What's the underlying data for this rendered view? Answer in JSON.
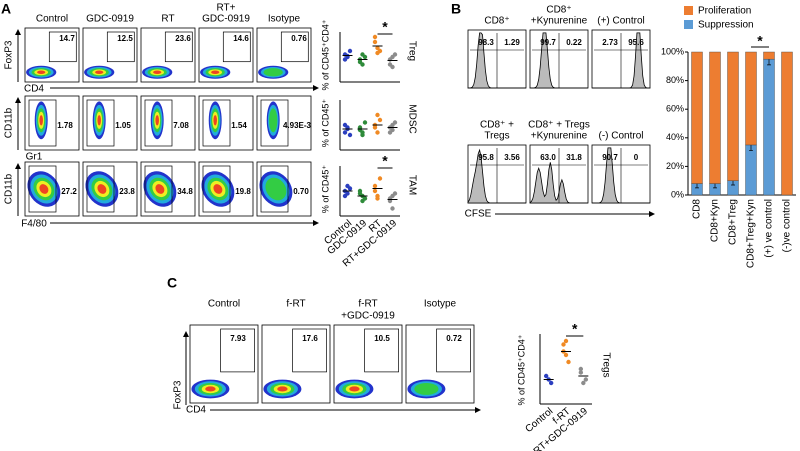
{
  "panel_a": {
    "label": "A",
    "columns": [
      [
        "Control"
      ],
      [
        "GDC-0919"
      ],
      [
        "RT"
      ],
      [
        "RT+",
        "GDC-0919"
      ],
      [
        "Isotype"
      ]
    ],
    "rows": [
      {
        "y_label": "FoxP3",
        "x_label": "CD4",
        "gates": [
          "14.7",
          "12.5",
          "23.6",
          "14.6",
          "0.76"
        ],
        "dot_plot": {
          "y_label": "% of CD45⁺CD4⁺",
          "tag": "Treg",
          "significance": "*",
          "values": [
            [
              0.55,
              0.5,
              0.62,
              0.45,
              0.52
            ],
            [
              0.45,
              0.35,
              0.5,
              0.4,
              0.55
            ],
            [
              0.8,
              0.68,
              0.62,
              0.9,
              0.58
            ],
            [
              0.45,
              0.3,
              0.55,
              0.35,
              0.5
            ]
          ],
          "means": [
            0.53,
            0.45,
            0.72,
            0.43
          ]
        }
      },
      {
        "y_label": "CD11b",
        "x_label": "Gr1",
        "gates": [
          "1.78",
          "1.05",
          "7.08",
          "1.54",
          "4.93E-3"
        ],
        "dot_plot": {
          "y_label": "% of CD45⁺",
          "tag": "MDSC",
          "values": [
            [
              0.35,
              0.45,
              0.3,
              0.5,
              0.42
            ],
            [
              0.4,
              0.3,
              0.55,
              0.45,
              0.35
            ],
            [
              0.5,
              0.35,
              0.6,
              0.45,
              0.7
            ],
            [
              0.45,
              0.4,
              0.55,
              0.35,
              0.5
            ]
          ],
          "means": [
            0.42,
            0.42,
            0.5,
            0.45
          ]
        }
      },
      {
        "y_label": "CD11b",
        "x_label": "F4/80",
        "gates": [
          "27.2",
          "23.8",
          "34.8",
          "19.8",
          "0.70"
        ],
        "dot_plot": {
          "y_label": "% of CD45⁺",
          "tag": "TAM",
          "significance": "*",
          "values": [
            [
              0.5,
              0.45,
              0.55,
              0.4,
              0.6
            ],
            [
              0.45,
              0.3,
              0.35,
              0.5,
              0.4
            ],
            [
              0.6,
              0.35,
              0.75,
              0.5,
              0.4
            ],
            [
              0.35,
              0.15,
              0.45,
              0.3,
              0.4
            ]
          ],
          "means": [
            0.5,
            0.4,
            0.55,
            0.33
          ]
        }
      }
    ],
    "categories": [
      "Control",
      "GDC-0919",
      "RT",
      "RT+GDC-0919"
    ],
    "colors": [
      "#2b3fbf",
      "#2e8b3a",
      "#f08a24",
      "#8c8c8c"
    ],
    "ylim": [
      0,
      1
    ]
  },
  "panel_b": {
    "label": "B",
    "plots": [
      {
        "title": [
          "CD8⁺"
        ],
        "left": "98.3",
        "right": "1.29"
      },
      {
        "title": [
          "CD8⁺",
          "+Kynurenine"
        ],
        "left": "99.7",
        "right": "0.22"
      },
      {
        "title": [
          "(+) Control"
        ],
        "left": "2.73",
        "right": "95.6"
      },
      {
        "title": [
          "CD8⁺ +",
          "Tregs"
        ],
        "left": "95.8",
        "right": "3.56"
      },
      {
        "title": [
          "CD8⁺ + Tregs",
          "+Kynurenine"
        ],
        "left": "63.0",
        "right": "31.8"
      },
      {
        "title": [
          "(-) Control"
        ],
        "left": "90.7",
        "right": "0"
      }
    ],
    "x_label": "CFSE",
    "chart_data": {
      "type": "bar",
      "stacked": true,
      "categories": [
        "CD8",
        "CD8+Kyn",
        "CD8+Treg",
        "CD8+Treg+Kyn",
        "(+) ve control",
        "(-)ve control"
      ],
      "series": [
        {
          "name": "Proliferation",
          "color": "#ed7d31",
          "values": [
            92,
            92,
            90,
            65,
            5,
            100
          ]
        },
        {
          "name": "Suppression",
          "color": "#5b9bd5",
          "values": [
            8,
            8,
            10,
            35,
            95,
            0
          ],
          "errors": [
            3,
            3,
            3,
            4,
            4,
            0
          ]
        }
      ],
      "ylim": [
        0,
        100
      ],
      "yticks": [
        {
          "value": 0,
          "label": "0%"
        },
        {
          "value": 20,
          "label": "20%"
        },
        {
          "value": 40,
          "label": "40%"
        },
        {
          "value": 60,
          "label": "60%"
        },
        {
          "value": 80,
          "label": "80%"
        },
        {
          "value": 100,
          "label": "100%"
        }
      ],
      "significance": "*"
    }
  },
  "panel_c": {
    "label": "C",
    "columns": [
      [
        "Control"
      ],
      [
        "f-RT"
      ],
      [
        "f-RT",
        "+GDC-0919"
      ],
      [
        "Isotype"
      ]
    ],
    "gates": [
      "7.93",
      "17.6",
      "10.5",
      "0.72"
    ],
    "y_label": "FoxP3",
    "x_label": "CD4",
    "dot_plot": {
      "y_label": "% of CD45⁺CD4⁺",
      "tag": "Tregs",
      "significance": "*",
      "categories": [
        "Control",
        "f-RT",
        "f-RT+GDC-0919"
      ],
      "colors": [
        "#2b3fbf",
        "#f08a24",
        "#8c8c8c"
      ],
      "values": [
        [
          0.4,
          0.35,
          0.3
        ],
        [
          0.85,
          0.7,
          0.6,
          0.75,
          0.9
        ],
        [
          0.45,
          0.3,
          0.35,
          0.5
        ]
      ],
      "means": [
        0.35,
        0.75,
        0.4
      ],
      "ylim": [
        0,
        1
      ]
    }
  }
}
